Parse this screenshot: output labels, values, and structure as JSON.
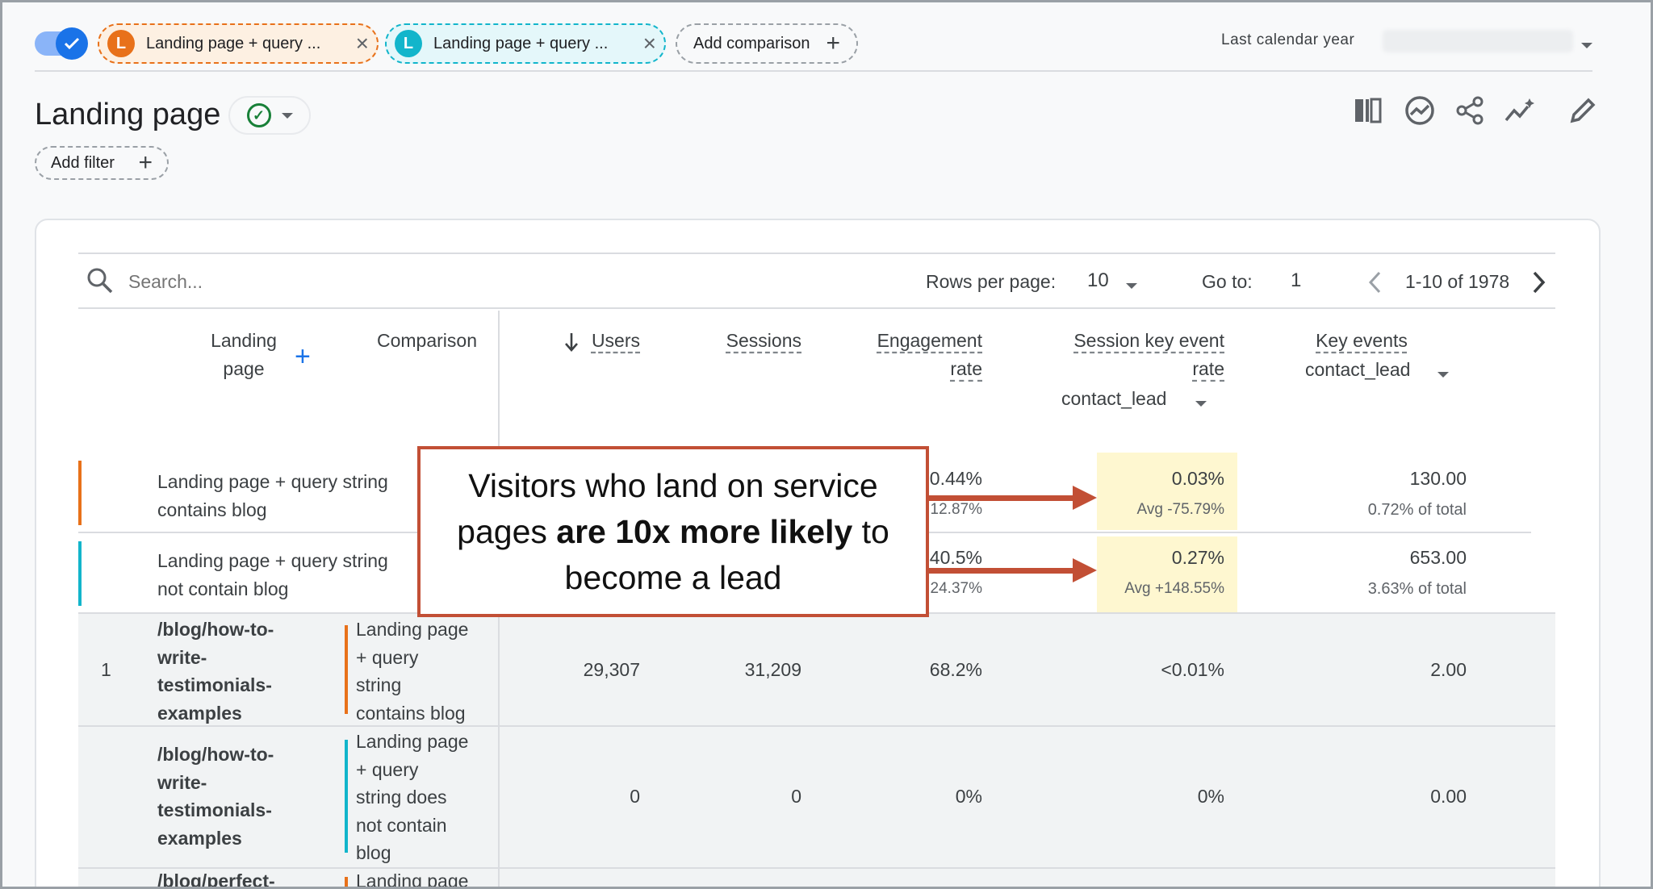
{
  "comparisons": {
    "chip1_badge": "L",
    "chip1_label": "Landing page + query ...",
    "chip2_badge": "L",
    "chip2_label": "Landing page + query ...",
    "close_icon": "×",
    "add_label": "Add comparison",
    "colors": {
      "orange": "#e8711a",
      "teal": "#12b5cb"
    }
  },
  "date": {
    "label": "Last calendar year"
  },
  "report": {
    "title": "Landing page",
    "add_filter": "Add filter"
  },
  "table_controls": {
    "search_placeholder": "Search...",
    "rows_per_page_label": "Rows per page:",
    "rows_per_page_value": "10",
    "goto_label": "Go to:",
    "goto_value": "1",
    "range": "1-10 of 1978"
  },
  "headers": {
    "landing_l1": "Landing",
    "landing_l2": "page",
    "comparison": "Comparison",
    "users": "Users",
    "sessions": "Sessions",
    "engagement_l1": "Engagement",
    "engagement_l2": "rate",
    "skr_l1": "Session key event",
    "skr_l2": "rate",
    "skr_sub": "contact_lead",
    "ke": "Key events",
    "ke_sub": "contact_lead"
  },
  "summary": [
    {
      "label_l1": "Landing page + query string",
      "label_l2": "contains blog",
      "eng": "0.44%",
      "eng_sub": "12.87%",
      "skr": "0.03%",
      "skr_sub": "Avg -75.79%",
      "ke": "130.00",
      "ke_sub": "0.72% of total"
    },
    {
      "label_l1": "Landing page + query string",
      "label_l2": "not contain blog",
      "eng": "40.5%",
      "eng_sub": "24.37%",
      "skr": "0.27%",
      "skr_sub": "Avg +148.55%",
      "ke": "653.00",
      "ke_sub": "3.63% of total"
    }
  ],
  "rows": [
    {
      "num": "1",
      "page": [
        "/blog/how-to-",
        "write-",
        "testimonials-",
        "examples"
      ],
      "comp": [
        "Landing page",
        "+ query",
        "string",
        "contains blog"
      ],
      "users": "29,307",
      "sessions": "31,209",
      "eng": "68.2%",
      "skr": "<0.01%",
      "ke": "2.00"
    },
    {
      "num": "",
      "page": [
        "/blog/how-to-",
        "write-",
        "testimonials-",
        "examples"
      ],
      "comp": [
        "Landing page",
        "+ query",
        "string does",
        "not contain",
        "blog"
      ],
      "users": "0",
      "sessions": "0",
      "eng": "0%",
      "skr": "0%",
      "ke": "0.00"
    },
    {
      "page": [
        "/blog/perfect-"
      ],
      "comp": [
        "Landing page"
      ]
    }
  ],
  "callout": {
    "pre": "Visitors who land on service pages ",
    "bold": "are 10x more likely",
    "post": " to become a lead"
  }
}
